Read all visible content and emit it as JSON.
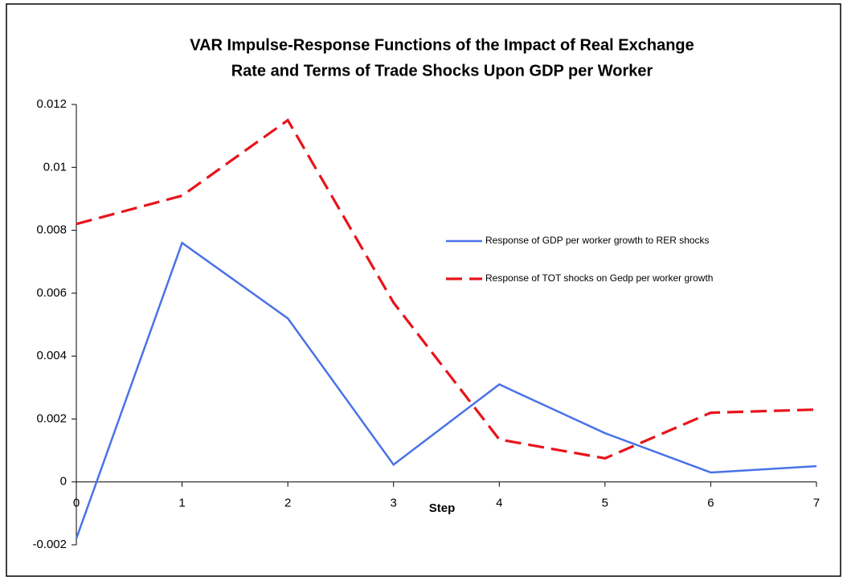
{
  "chart_data": {
    "type": "line",
    "title": [
      "VAR Impulse-Response Functions of the Impact of Real Exchange",
      "Rate and Terms of Trade Shocks Upon GDP per Worker"
    ],
    "x_label": "Step",
    "x": [
      0,
      1,
      2,
      3,
      4,
      5,
      6,
      7
    ],
    "xlim": [
      0,
      7
    ],
    "xticks": [
      0,
      1,
      2,
      3,
      4,
      5,
      6,
      7
    ],
    "ylim": [
      -0.002,
      0.012
    ],
    "yticks": [
      -0.002,
      0,
      0.002,
      0.004,
      0.006,
      0.008,
      0.01,
      0.012
    ],
    "grid": false,
    "series": [
      {
        "name": "Response of GDP per worker growth to RER shocks",
        "color": "#4a72e8",
        "dashed": false,
        "values": [
          -0.0018,
          0.0076,
          0.0052,
          0.00055,
          0.0031,
          0.00155,
          0.0003,
          0.0005
        ]
      },
      {
        "name": "Response of TOT shocks on Gedp per worker growth",
        "color": "#e8141a",
        "dashed": true,
        "values": [
          0.0082,
          0.0091,
          0.0115,
          0.0057,
          0.00135,
          0.00075,
          0.0022,
          0.0023
        ]
      }
    ]
  }
}
